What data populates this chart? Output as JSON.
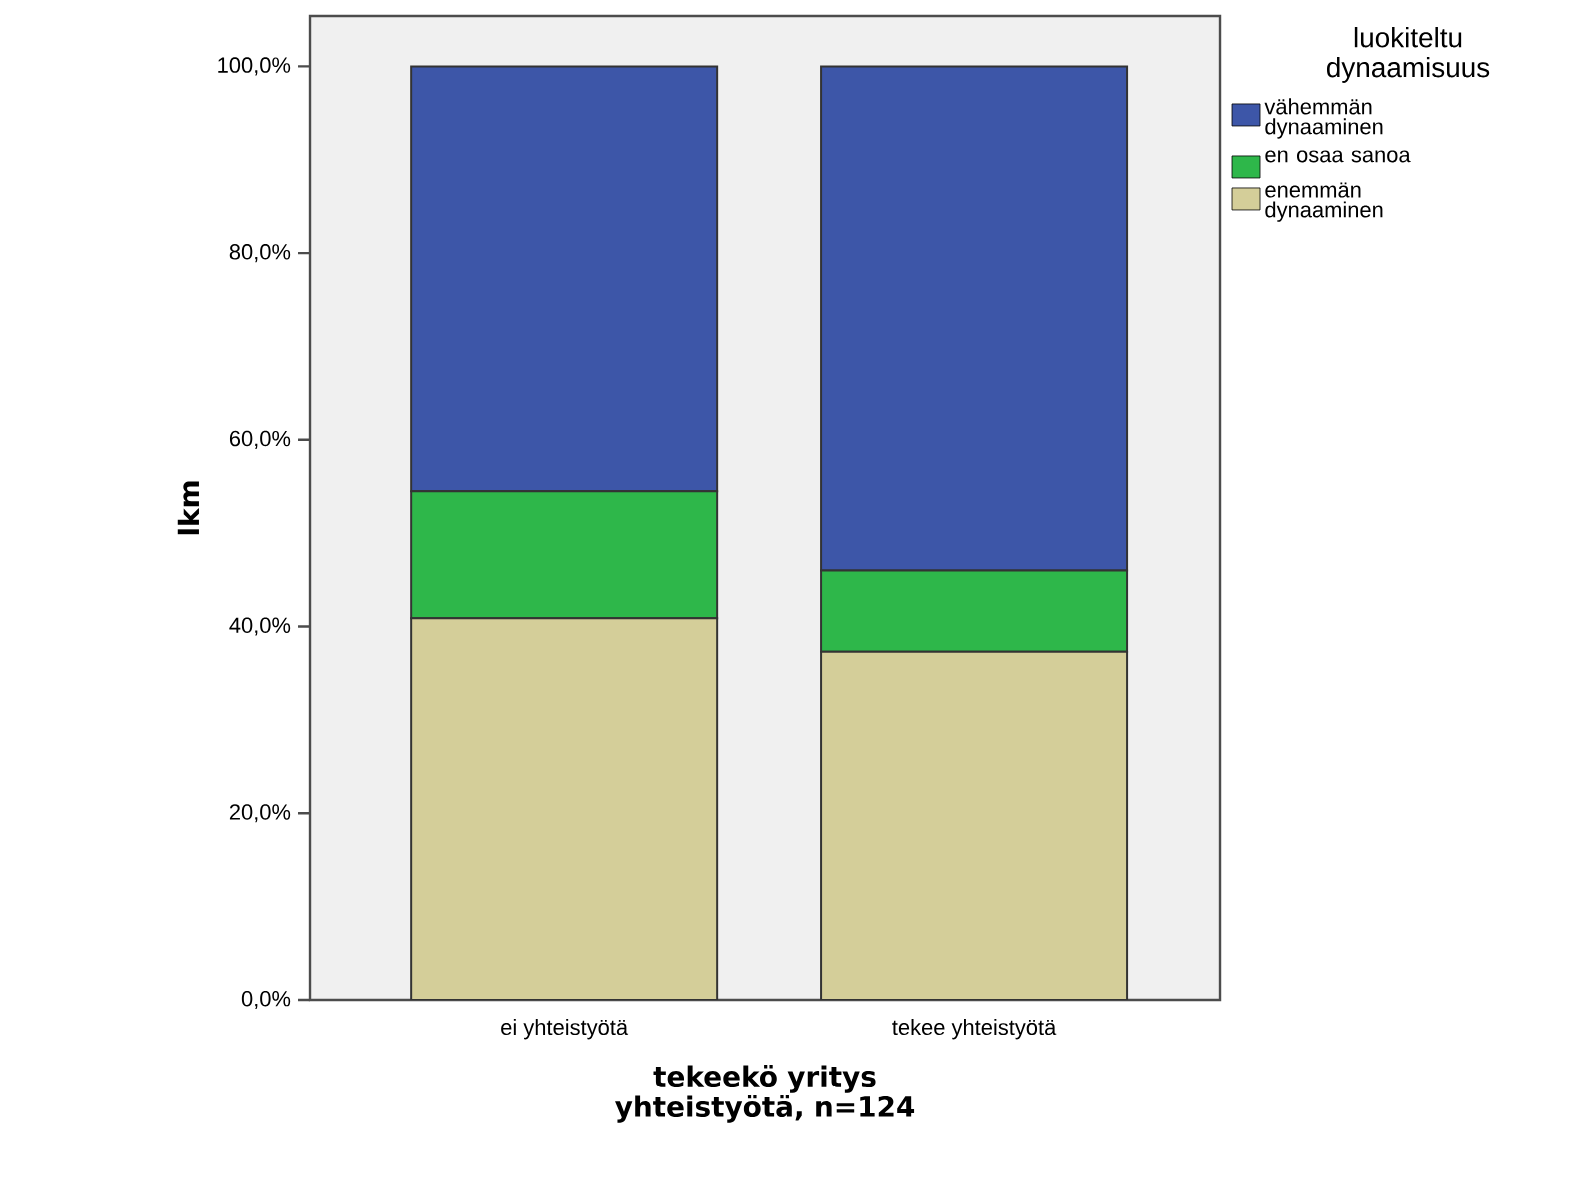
{
  "chart_data": {
    "type": "bar",
    "stacked": true,
    "xlabel": "tekeekö yritys yhteistyötä, n=124",
    "ylabel": "lkm",
    "legend_title": "luokiteltu dynaamisuus",
    "legend": "right",
    "categories": [
      "ei yhteistyötä",
      "tekee yhteistyötä"
    ],
    "series": [
      {
        "name": "enemmän dynaaminen",
        "color": "#d4ce99",
        "values": [
          40.9,
          37.3
        ]
      },
      {
        "name": "en osaa sanoa",
        "color": "#2eb74a",
        "values": [
          13.6,
          8.7
        ]
      },
      {
        "name": "vähemmän dynaaminen",
        "color": "#3d56a8",
        "values": [
          45.5,
          54.0
        ]
      }
    ],
    "ylim": [
      0,
      105.4
    ],
    "yticks": [
      {
        "value": 0,
        "label": "0,0%"
      },
      {
        "value": 20,
        "label": "20,0%"
      },
      {
        "value": 40,
        "label": "40,0%"
      },
      {
        "value": 60,
        "label": "60,0%"
      },
      {
        "value": 80,
        "label": "80,0%"
      },
      {
        "value": 100,
        "label": "100,0%"
      }
    ]
  }
}
